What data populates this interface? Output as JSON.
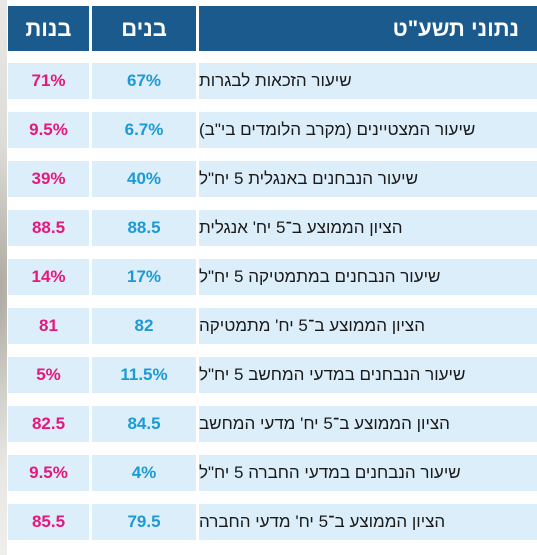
{
  "header": {
    "girls": "בנות",
    "boys": "בנים",
    "label": "נתוני תשע\"ט"
  },
  "rows": [
    {
      "label": "שיעור הזכאות לבגרות",
      "boys": "67%",
      "girls": "71%"
    },
    {
      "label": "שיעור המצטיינים (מקרב הלומדים בי\"ב)",
      "boys": "6.7%",
      "girls": "9.5%"
    },
    {
      "label": "שיעור הנבחנים באנגלית 5 יח\"ל",
      "boys": "40%",
      "girls": "39%"
    },
    {
      "label": "הציון הממוצע ב־5 יח' אנגלית",
      "boys": "88.5",
      "girls": "88.5"
    },
    {
      "label": "שיעור הנבחנים במתמטיקה 5 יח\"ל",
      "boys": "17%",
      "girls": "14%"
    },
    {
      "label": "הציון הממוצע ב־5 יח' מתמטיקה",
      "boys": "82",
      "girls": "81"
    },
    {
      "label": "שיעור הנבחנים במדעי המחשב 5 יח\"ל",
      "boys": "11.5%",
      "girls": "5%"
    },
    {
      "label": "הציון הממוצע ב־5 יח' מדעי המחשב",
      "boys": "84.5",
      "girls": "82.5"
    },
    {
      "label": "שיעור הנבחנים במדעי החברה 5 יח\"ל",
      "boys": "4%",
      "girls": "9.5%"
    },
    {
      "label": "הציון הממוצע ב־5 יח' מדעי החברה",
      "boys": "79.5",
      "girls": "85.5"
    }
  ],
  "colors": {
    "header_bg": "#1b5a8c",
    "row_bg": "#dbeef9",
    "boys_text": "#1c9ad6",
    "girls_text": "#e6177d"
  }
}
